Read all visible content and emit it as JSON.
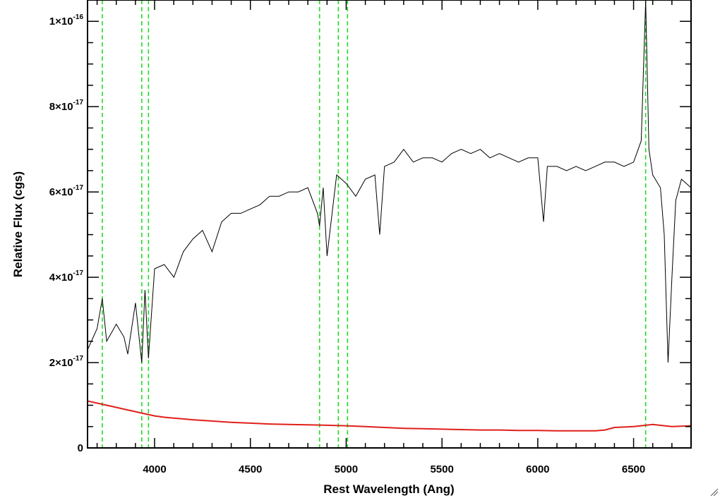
{
  "chart_data": {
    "type": "line",
    "title": "",
    "xlabel": "Rest Wavelength (Ang)",
    "ylabel": "Relative Flux (cgs)",
    "xlim": [
      3650,
      6800
    ],
    "ylim": [
      0,
      1.05e-16
    ],
    "grid": false,
    "legend": "none",
    "x_ticks": [
      4000,
      4500,
      5000,
      5500,
      6000,
      6500
    ],
    "x_tick_labels": [
      "4000",
      "4500",
      "5000",
      "5500",
      "6000",
      "6500"
    ],
    "y_ticks": [
      0,
      2e-17,
      4e-17,
      6e-17,
      8e-17,
      1e-16
    ],
    "y_tick_labels": [
      {
        "mantissa": "0",
        "exponent": ""
      },
      {
        "mantissa": "2×10",
        "exponent": "-17"
      },
      {
        "mantissa": "4×10",
        "exponent": "-17"
      },
      {
        "mantissa": "6×10",
        "exponent": "-17"
      },
      {
        "mantissa": "8×10",
        "exponent": "-17"
      },
      {
        "mantissa": "1×10",
        "exponent": "-16"
      }
    ],
    "series": [
      {
        "color": "#000000",
        "x": [
          3650,
          3700,
          3727,
          3750,
          3800,
          3840,
          3860,
          3900,
          3933,
          3950,
          3968,
          4000,
          4050,
          4101,
          4150,
          4200,
          4250,
          4300,
          4350,
          4400,
          4450,
          4500,
          4550,
          4600,
          4650,
          4700,
          4750,
          4800,
          4850,
          4861,
          4880,
          4900,
          4950,
          5000,
          5050,
          5100,
          5150,
          5175,
          5200,
          5250,
          5300,
          5350,
          5400,
          5450,
          5500,
          5550,
          5600,
          5650,
          5700,
          5750,
          5800,
          5850,
          5900,
          5950,
          6000,
          6030,
          6050,
          6100,
          6150,
          6200,
          6250,
          6300,
          6350,
          6400,
          6450,
          6500,
          6540,
          6563,
          6580,
          6600,
          6640,
          6660,
          6680,
          6700,
          6720,
          6750,
          6800
        ],
        "y": [
          2.3e-17,
          2.8e-17,
          3.5e-17,
          2.5e-17,
          2.9e-17,
          2.6e-17,
          2.2e-17,
          3.4e-17,
          2e-17,
          3.7e-17,
          2.1e-17,
          4.2e-17,
          4.3e-17,
          4e-17,
          4.6e-17,
          4.9e-17,
          5.1e-17,
          4.6e-17,
          5.3e-17,
          5.5e-17,
          5.5e-17,
          5.6e-17,
          5.7e-17,
          5.9e-17,
          5.9e-17,
          6e-17,
          6e-17,
          6.1e-17,
          5.5e-17,
          5.2e-17,
          6.1e-17,
          4.5e-17,
          6.4e-17,
          6.2e-17,
          5.9e-17,
          6.3e-17,
          6.4e-17,
          5e-17,
          6.6e-17,
          6.7e-17,
          7e-17,
          6.7e-17,
          6.8e-17,
          6.8e-17,
          6.7e-17,
          6.9e-17,
          7e-17,
          6.9e-17,
          7e-17,
          6.8e-17,
          6.9e-17,
          6.8e-17,
          6.7e-17,
          6.8e-17,
          6.8e-17,
          5.3e-17,
          6.6e-17,
          6.6e-17,
          6.5e-17,
          6.6e-17,
          6.5e-17,
          6.6e-17,
          6.7e-17,
          6.7e-17,
          6.6e-17,
          6.7e-17,
          7.2e-17,
          1.05e-16,
          7e-17,
          6.4e-17,
          6.1e-17,
          5e-17,
          2e-17,
          4e-17,
          5.8e-17,
          6.3e-17,
          6.1e-17
        ]
      },
      {
        "color": "#e0201c",
        "x": [
          3650,
          3700,
          3750,
          3800,
          3850,
          3900,
          3950,
          4000,
          4050,
          4100,
          4150,
          4200,
          4300,
          4400,
          4500,
          4600,
          4700,
          4800,
          4900,
          5000,
          5100,
          5200,
          5300,
          5400,
          5500,
          5600,
          5700,
          5800,
          5900,
          6000,
          6100,
          6200,
          6300,
          6350,
          6400,
          6500,
          6600,
          6700,
          6800
        ],
        "y": [
          1.1e-17,
          1.05e-17,
          1e-17,
          9.5e-18,
          9e-18,
          8.5e-18,
          8e-18,
          7.5e-18,
          7.2e-18,
          7e-18,
          6.8e-18,
          6.6e-18,
          6.3e-18,
          6e-18,
          5.8e-18,
          5.6e-18,
          5.5e-18,
          5.4e-18,
          5.3e-18,
          5.2e-18,
          5e-18,
          4.8e-18,
          4.6e-18,
          4.5e-18,
          4.4e-18,
          4.3e-18,
          4.2e-18,
          4.2e-18,
          4.1e-18,
          4.1e-18,
          4e-18,
          4e-18,
          4e-18,
          4.2e-18,
          4.8e-18,
          5e-18,
          5.5e-18,
          5e-18,
          5.2e-18
        ]
      }
    ],
    "vlines": {
      "color": "#22dd22",
      "x": [
        3727,
        3933,
        3968,
        4861,
        4959,
        5007,
        6563
      ]
    }
  }
}
